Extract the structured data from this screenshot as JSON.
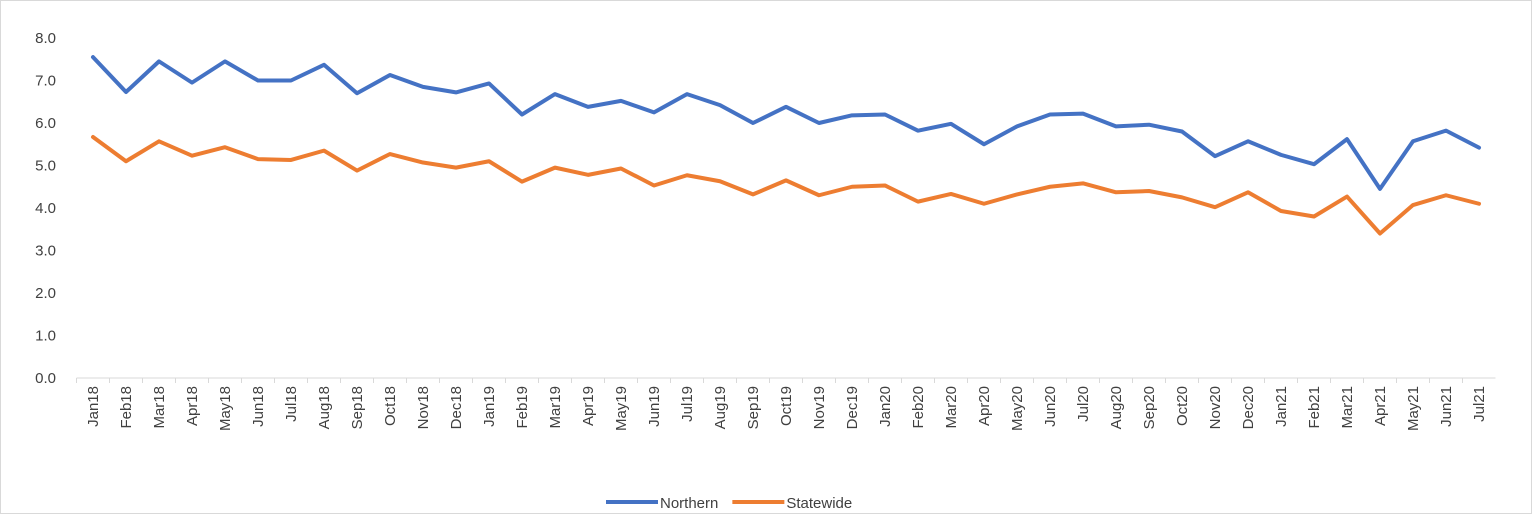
{
  "chart_data": {
    "type": "line",
    "categories": [
      "Jan18",
      "Feb18",
      "Mar18",
      "Apr18",
      "May18",
      "Jun18",
      "Jul18",
      "Aug18",
      "Sep18",
      "Oct18",
      "Nov18",
      "Dec18",
      "Jan19",
      "Feb19",
      "Mar19",
      "Apr19",
      "May19",
      "Jun19",
      "Jul19",
      "Aug19",
      "Sep19",
      "Oct19",
      "Nov19",
      "Dec19",
      "Jan20",
      "Feb20",
      "Mar20",
      "Apr20",
      "May20",
      "Jun20",
      "Jul20",
      "Aug20",
      "Sep20",
      "Oct20",
      "Nov20",
      "Dec20",
      "Jan21",
      "Feb21",
      "Mar21",
      "Apr21",
      "May21",
      "Jun21",
      "Jul21"
    ],
    "series": [
      {
        "name": "Northern",
        "color": "#4472c4",
        "values": [
          7.55,
          6.73,
          7.45,
          6.95,
          7.45,
          7.0,
          7.0,
          7.37,
          6.7,
          7.13,
          6.85,
          6.72,
          6.93,
          6.2,
          6.68,
          6.38,
          6.52,
          6.25,
          6.68,
          6.42,
          6.0,
          6.38,
          6.0,
          6.18,
          6.2,
          5.82,
          5.98,
          5.5,
          5.92,
          6.2,
          6.22,
          5.92,
          5.96,
          5.8,
          5.22,
          5.57,
          5.25,
          5.03,
          5.62,
          4.45,
          5.57,
          5.82,
          5.42
        ]
      },
      {
        "name": "Statewide",
        "color": "#ed7d31",
        "values": [
          5.67,
          5.1,
          5.57,
          5.23,
          5.43,
          5.15,
          5.13,
          5.35,
          4.88,
          5.27,
          5.07,
          4.95,
          5.1,
          4.62,
          4.95,
          4.78,
          4.93,
          4.53,
          4.77,
          4.63,
          4.32,
          4.65,
          4.3,
          4.5,
          4.53,
          4.15,
          4.33,
          4.1,
          4.32,
          4.5,
          4.58,
          4.37,
          4.4,
          4.25,
          4.02,
          4.37,
          3.93,
          3.8,
          4.27,
          3.4,
          4.07,
          4.3,
          4.1
        ]
      }
    ],
    "ylim": [
      0,
      8
    ],
    "yticks": [
      {
        "value": 0,
        "label": "0.0"
      },
      {
        "value": 1,
        "label": "1.0"
      },
      {
        "value": 2,
        "label": "2.0"
      },
      {
        "value": 3,
        "label": "3.0"
      },
      {
        "value": 4,
        "label": "4.0"
      },
      {
        "value": 5,
        "label": "5.0"
      },
      {
        "value": 6,
        "label": "6.0"
      },
      {
        "value": 7,
        "label": "7.0"
      },
      {
        "value": 8,
        "label": "8.0"
      }
    ],
    "grid": false,
    "legend": "bottom"
  }
}
